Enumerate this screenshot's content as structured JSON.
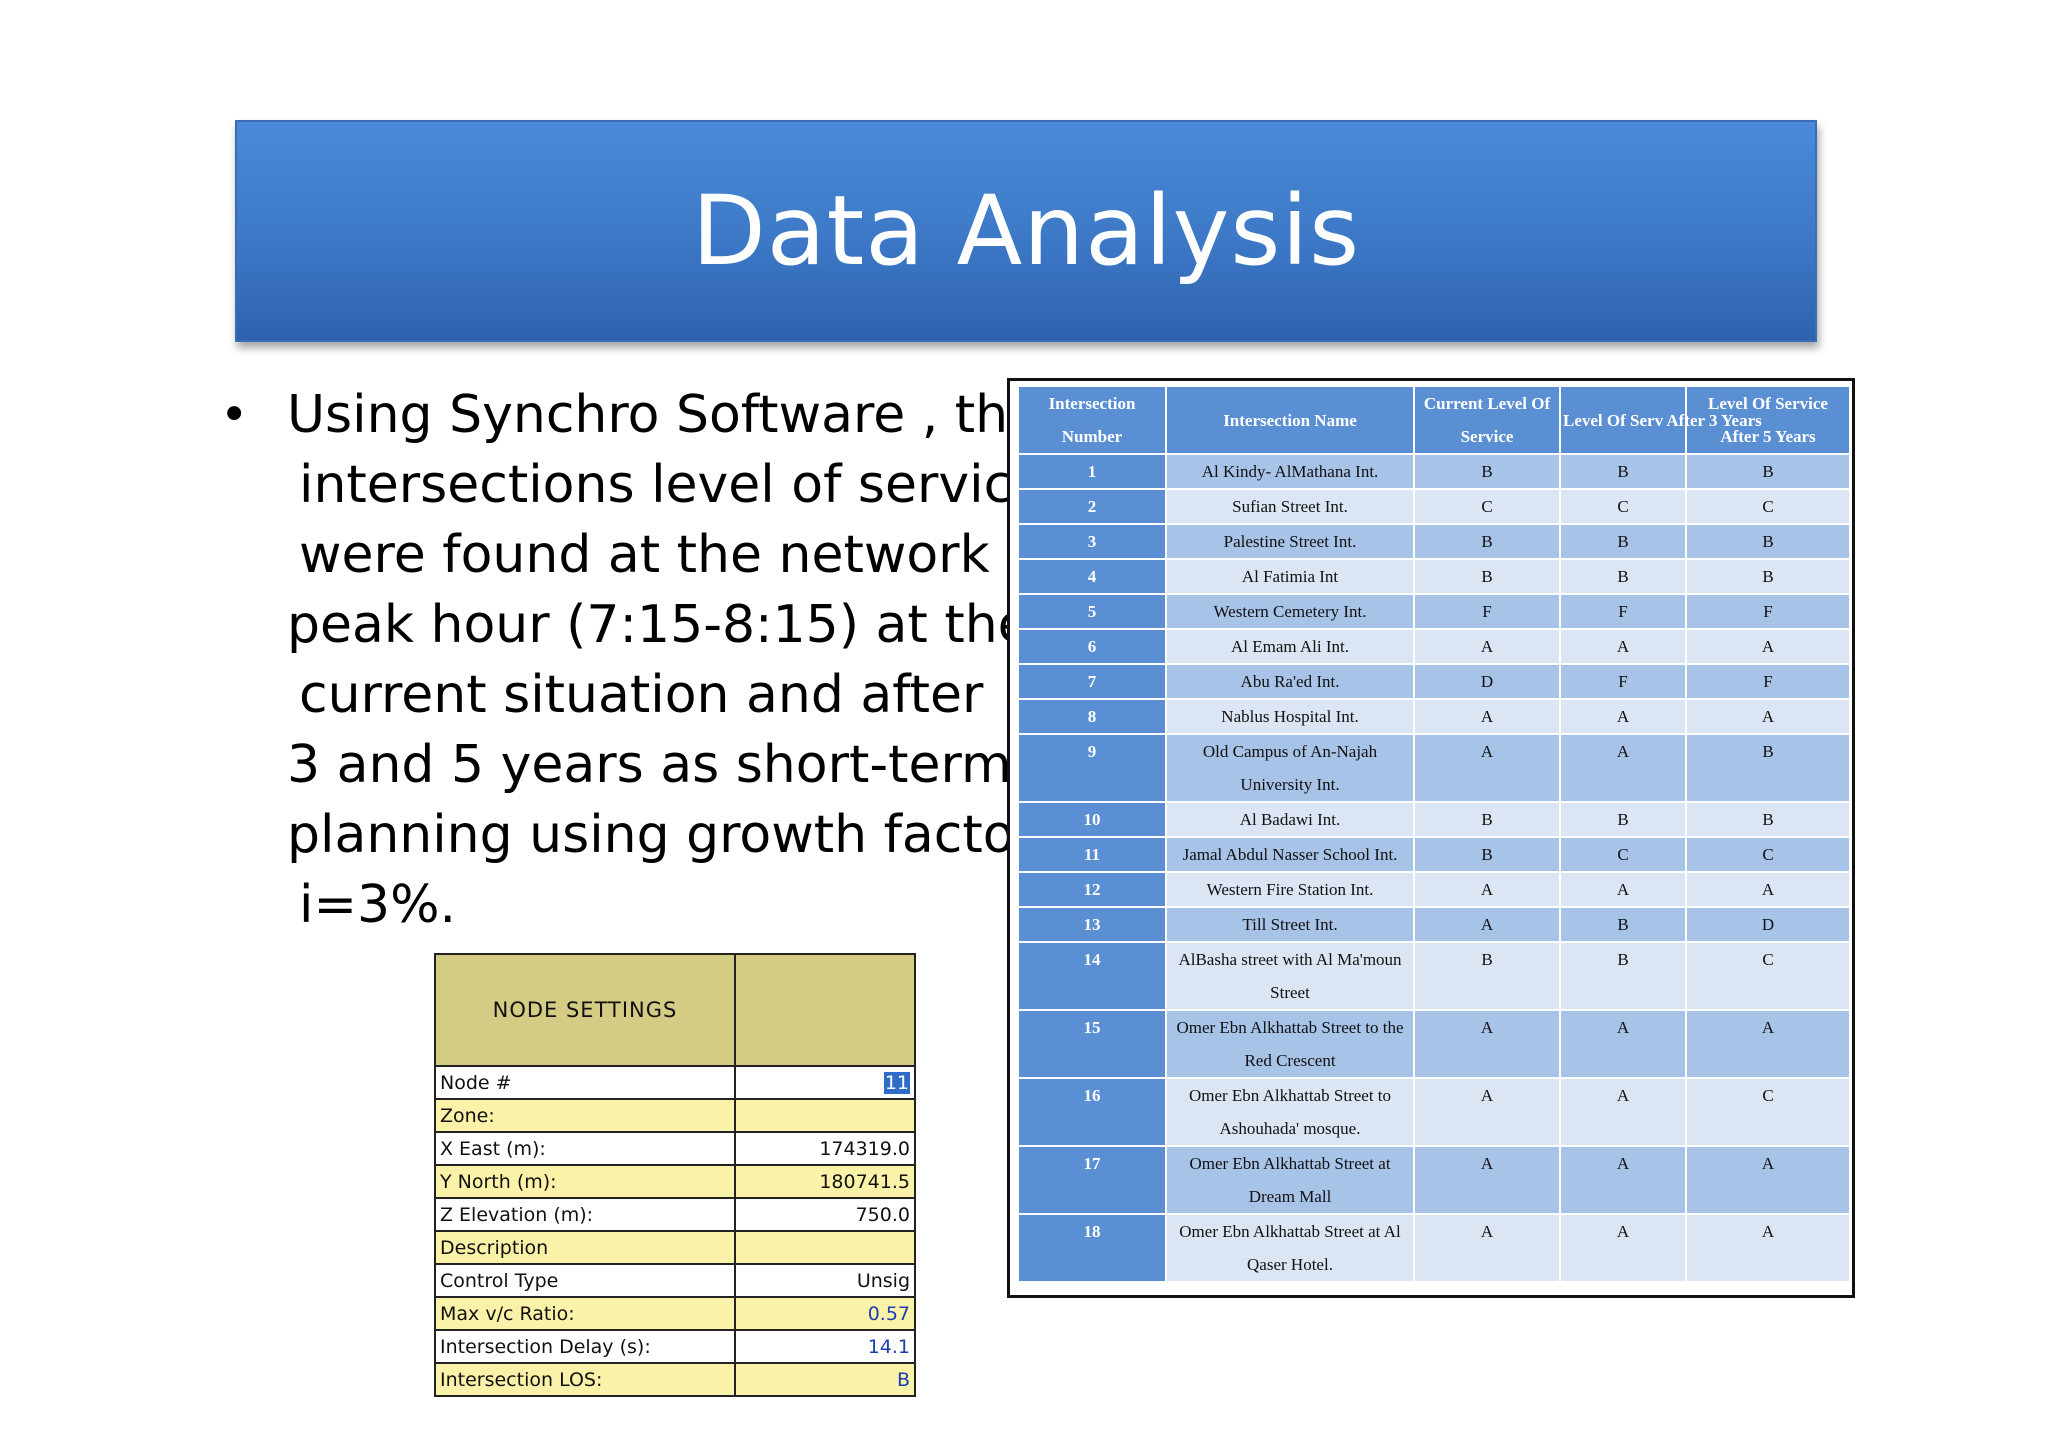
{
  "title": "Data Analysis",
  "bullet_lines": [
    "Using Synchro Software , the",
    "intersections level of service",
    "were found at the network",
    "peak hour (7:15-8:15) at the",
    "current situation and after",
    "3 and 5 years as short-term",
    "planning using growth factor",
    "i=3%."
  ],
  "los_table": {
    "headers": [
      "Intersection Number",
      "Intersection  Name",
      "Current Level Of Service",
      "Level Of Serv After 3 Years",
      "Level Of Service After 5 Years"
    ],
    "rows": [
      [
        "1",
        "Al Kindy- AlMathana Int.",
        "B",
        "B",
        "B"
      ],
      [
        "2",
        "Sufian Street Int.",
        "C",
        "C",
        "C"
      ],
      [
        "3",
        "Palestine Street Int.",
        "B",
        "B",
        "B"
      ],
      [
        "4",
        "Al Fatimia Int",
        "B",
        "B",
        "B"
      ],
      [
        "5",
        "Western Cemetery Int.",
        "F",
        "F",
        "F"
      ],
      [
        "6",
        "Al Emam Ali Int.",
        "A",
        "A",
        "A"
      ],
      [
        "7",
        "Abu Ra'ed Int.",
        "D",
        "F",
        "F"
      ],
      [
        "8",
        "Nablus Hospital Int.",
        "A",
        "A",
        "A"
      ],
      [
        "9",
        "Old Campus of An-Najah University Int.",
        "A",
        "A",
        "B"
      ],
      [
        "10",
        "Al Badawi Int.",
        "B",
        "B",
        "B"
      ],
      [
        "11",
        "Jamal Abdul Nasser School Int.",
        "B",
        "C",
        "C"
      ],
      [
        "12",
        "Western Fire Station Int.",
        "A",
        "A",
        "A"
      ],
      [
        "13",
        "Till Street Int.",
        "A",
        "B",
        "D"
      ],
      [
        "14",
        "AlBasha street with Al Ma'moun Street",
        "B",
        "B",
        "C"
      ],
      [
        "15",
        "Omer Ebn Alkhattab Street to the Red Crescent",
        "A",
        "A",
        "A"
      ],
      [
        "16",
        "Omer Ebn Alkhattab Street to Ashouhada' mosque.",
        "A",
        "A",
        "C"
      ],
      [
        "17",
        "Omer Ebn Alkhattab Street at Dream Mall",
        "A",
        "A",
        "A"
      ],
      [
        "18",
        "Omer Ebn Alkhattab Street at Al Qaser Hotel.",
        "A",
        "A",
        "A"
      ]
    ]
  },
  "node_settings": {
    "header": "NODE SETTINGS",
    "rows": [
      {
        "label": "Node #",
        "value": "11",
        "style": "w"
      },
      {
        "label": "Zone:",
        "value": "",
        "style": "y"
      },
      {
        "label": "X East (m):",
        "value": "174319.0",
        "style": "w"
      },
      {
        "label": "Y North (m):",
        "value": "180741.5",
        "style": "y"
      },
      {
        "label": "Z Elevation (m):",
        "value": "750.0",
        "style": "w"
      },
      {
        "label": "Description",
        "value": "",
        "style": "y"
      },
      {
        "label": "Control Type",
        "value": "Unsig",
        "style": "w"
      },
      {
        "label": "Max v/c Ratio:",
        "value": "0.57",
        "style": "y"
      },
      {
        "label": "Intersection Delay (s):",
        "value": "14.1",
        "style": "w"
      },
      {
        "label": "Intersection LOS:",
        "value": "B",
        "style": "y"
      }
    ]
  }
}
